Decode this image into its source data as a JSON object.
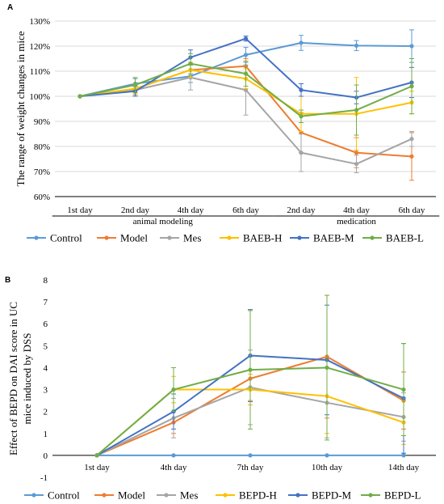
{
  "colors": {
    "Control": "#5B9BD5",
    "Model": "#ED7D31",
    "Mes": "#A5A5A5",
    "BAEB-H": "#FFC000",
    "BAEB-M": "#4472C4",
    "BAEB-L": "#70AD47",
    "BEPD-H": "#FFC000",
    "BEPD-M": "#4472C4",
    "BEPD-L": "#70AD47"
  },
  "chart_data": [
    {
      "type": "line",
      "panel_label": "A",
      "title": "",
      "xlabel": "",
      "ylabel": "The range of weight changes in mice",
      "categories": [
        "1st day",
        "2nd day",
        "4th day",
        "6th day",
        "2nd day",
        "4th day",
        "6th day"
      ],
      "groups": [
        {
          "label": "animal modeling",
          "from": 0,
          "to": 3
        },
        {
          "label": "medication",
          "from": 4,
          "to": 6
        }
      ],
      "ylim": [
        60,
        130
      ],
      "yticks": [
        60,
        70,
        80,
        90,
        100,
        110,
        120,
        130
      ],
      "ytick_labels": [
        "60%",
        "70%",
        "80%",
        "90%",
        "100%",
        "110%",
        "120%",
        "130%"
      ],
      "grid": true,
      "legend": "bottom",
      "series": [
        {
          "name": "Control",
          "values": [
            100,
            105,
            108,
            116.5,
            121.3,
            120.2,
            120
          ],
          "err": [
            0,
            2,
            2.5,
            3,
            3,
            2,
            6.5
          ]
        },
        {
          "name": "Model",
          "values": [
            100,
            103,
            110.5,
            112,
            85.5,
            77.5,
            76
          ],
          "err": [
            0,
            2,
            3,
            3,
            8,
            6,
            9.5
          ]
        },
        {
          "name": "Mes",
          "values": [
            100,
            102.5,
            107.5,
            102.5,
            77.5,
            73,
            83
          ],
          "err": [
            0,
            2,
            5,
            10,
            7.5,
            3.5,
            3
          ]
        },
        {
          "name": "BAEB-H",
          "values": [
            100,
            103,
            110.5,
            107,
            93,
            93,
            97.5
          ],
          "err": [
            0,
            2,
            3,
            4,
            7,
            14.5,
            4.5
          ]
        },
        {
          "name": "BAEB-M",
          "values": [
            100,
            102,
            115.5,
            123,
            102.5,
            99.5,
            105.5
          ],
          "err": [
            0,
            2,
            3,
            1,
            2.5,
            2.5,
            6
          ]
        },
        {
          "name": "BAEB-L",
          "values": [
            100,
            104.5,
            113,
            109,
            92,
            94.5,
            104
          ],
          "err": [
            0,
            3,
            4,
            5,
            2.5,
            10,
            11
          ]
        }
      ]
    },
    {
      "type": "line",
      "panel_label": "B",
      "title": "",
      "xlabel": "",
      "ylabel_lines": [
        "Effect of BEPD on DAI score in UC",
        "mice induced by DSS"
      ],
      "categories": [
        "1st day",
        "4th day",
        "7th day",
        "10th day",
        "14th day"
      ],
      "ylim": [
        -1,
        8
      ],
      "yticks": [
        -1,
        0,
        1,
        2,
        3,
        4,
        5,
        6,
        7,
        8
      ],
      "ytick_labels": [
        "-1",
        "0",
        "1",
        "2",
        "3",
        "4",
        "5",
        "6",
        "7",
        "8"
      ],
      "grid": false,
      "legend": "bottom",
      "series": [
        {
          "name": "Control",
          "values": [
            0,
            0,
            0,
            0,
            0
          ],
          "err": [
            0,
            0,
            0,
            0,
            0
          ]
        },
        {
          "name": "Model",
          "values": [
            0,
            1.5,
            3.5,
            4.5,
            2.5
          ],
          "err": [
            0,
            0.5,
            1,
            2.8,
            1.3
          ]
        },
        {
          "name": "Mes",
          "values": [
            0,
            1.7,
            3.1,
            2.4,
            1.75
          ],
          "err": [
            0,
            0.9,
            1.7,
            1.6,
            1.1
          ]
        },
        {
          "name": "BEPD-H",
          "values": [
            0,
            3,
            3,
            2.7,
            1.5
          ],
          "err": [
            0,
            0.6,
            0.7,
            1.7,
            1.0
          ]
        },
        {
          "name": "BEPD-M",
          "values": [
            0,
            2,
            4.55,
            4.35,
            2.6
          ],
          "err": [
            0,
            0.8,
            2.1,
            2.5,
            2.5
          ]
        },
        {
          "name": "BEPD-L",
          "values": [
            0,
            3,
            3.9,
            4,
            3
          ],
          "err": [
            0,
            1.0,
            2.7,
            3.3,
            2.1
          ]
        }
      ]
    }
  ]
}
